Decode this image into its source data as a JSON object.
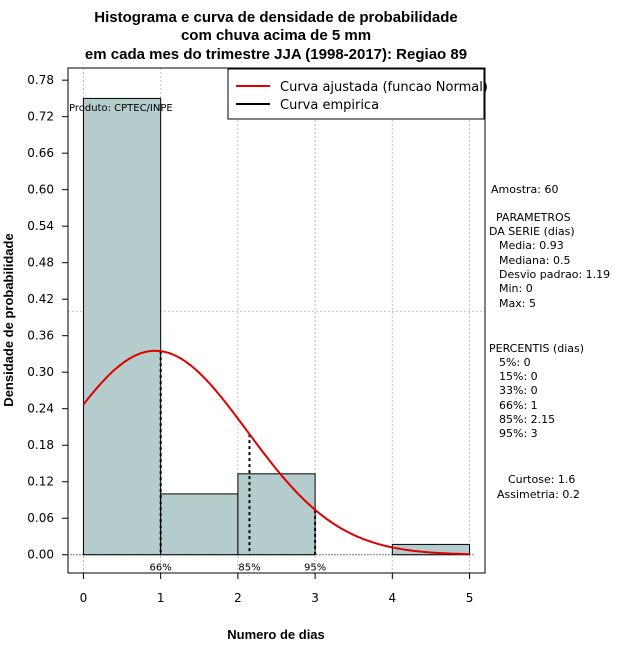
{
  "chart_data": {
    "type": "bar",
    "title": [
      "Histograma e curva de densidade de probabilidade",
      "com chuva acima de 5 mm",
      "em cada mes do trimestre JJA (1998-2017): Regiao 89"
    ],
    "xlabel": "Numero de dias",
    "ylabel": "Densidade de probabilidade",
    "xlim": [
      -0.2,
      5.2
    ],
    "ylim": [
      -0.03,
      0.8
    ],
    "x_ticks": [
      0,
      1,
      2,
      3,
      4,
      5
    ],
    "y_ticks": [
      0.0,
      0.06,
      0.12,
      0.18,
      0.24,
      0.3,
      0.36,
      0.42,
      0.48,
      0.54,
      0.6,
      0.66,
      0.72,
      0.78
    ],
    "y_tick_labels": [
      "0.00",
      "0.06",
      "0.12",
      "0.18",
      "0.24",
      "0.30",
      "0.36",
      "0.42",
      "0.48",
      "0.54",
      "0.60",
      "0.66",
      "0.72",
      "0.78"
    ],
    "bars": [
      {
        "x0": 0,
        "x1": 1,
        "density": 0.75
      },
      {
        "x0": 1,
        "x1": 2,
        "density": 0.1
      },
      {
        "x0": 2,
        "x1": 3,
        "density": 0.133
      },
      {
        "x0": 4,
        "x1": 5,
        "density": 0.017
      }
    ],
    "normal_curve": {
      "mean": 0.93,
      "sd": 1.19,
      "x_from": 0,
      "x_to": 5
    },
    "percentile_markers": [
      {
        "label": "66%",
        "x": 1
      },
      {
        "label": "85%",
        "x": 2.15
      },
      {
        "label": "95%",
        "x": 3
      }
    ],
    "legend": {
      "position": "top-right",
      "entries": [
        {
          "label": "Curva ajustada (funcao Normal)",
          "color": "#e00000"
        },
        {
          "label": "Curva empirica",
          "color": "#000000"
        }
      ]
    },
    "product_label": "Produto: CPTEC/INPE",
    "colors": {
      "bar_fill": "#b4cccc",
      "curve": "#e00000",
      "grid": "#c0c0c0"
    }
  },
  "side_panel": {
    "amostra": "Amostra: 60",
    "params_title": [
      "PARAMETROS",
      "DA SERIE (dias)"
    ],
    "params": [
      "Media: 0.93",
      "Mediana: 0.5",
      "Desvio padrao: 1.19",
      "Min: 0",
      "Max: 5"
    ],
    "percentis_title": "PERCENTIS (dias)",
    "percentis": [
      "5%: 0",
      "15%: 0",
      "33%: 0",
      "66%: 1",
      "85%: 2.15",
      "95%: 3"
    ],
    "curtose": "Curtose: 1.6",
    "assimetria": "Assimetria: 0.2"
  }
}
